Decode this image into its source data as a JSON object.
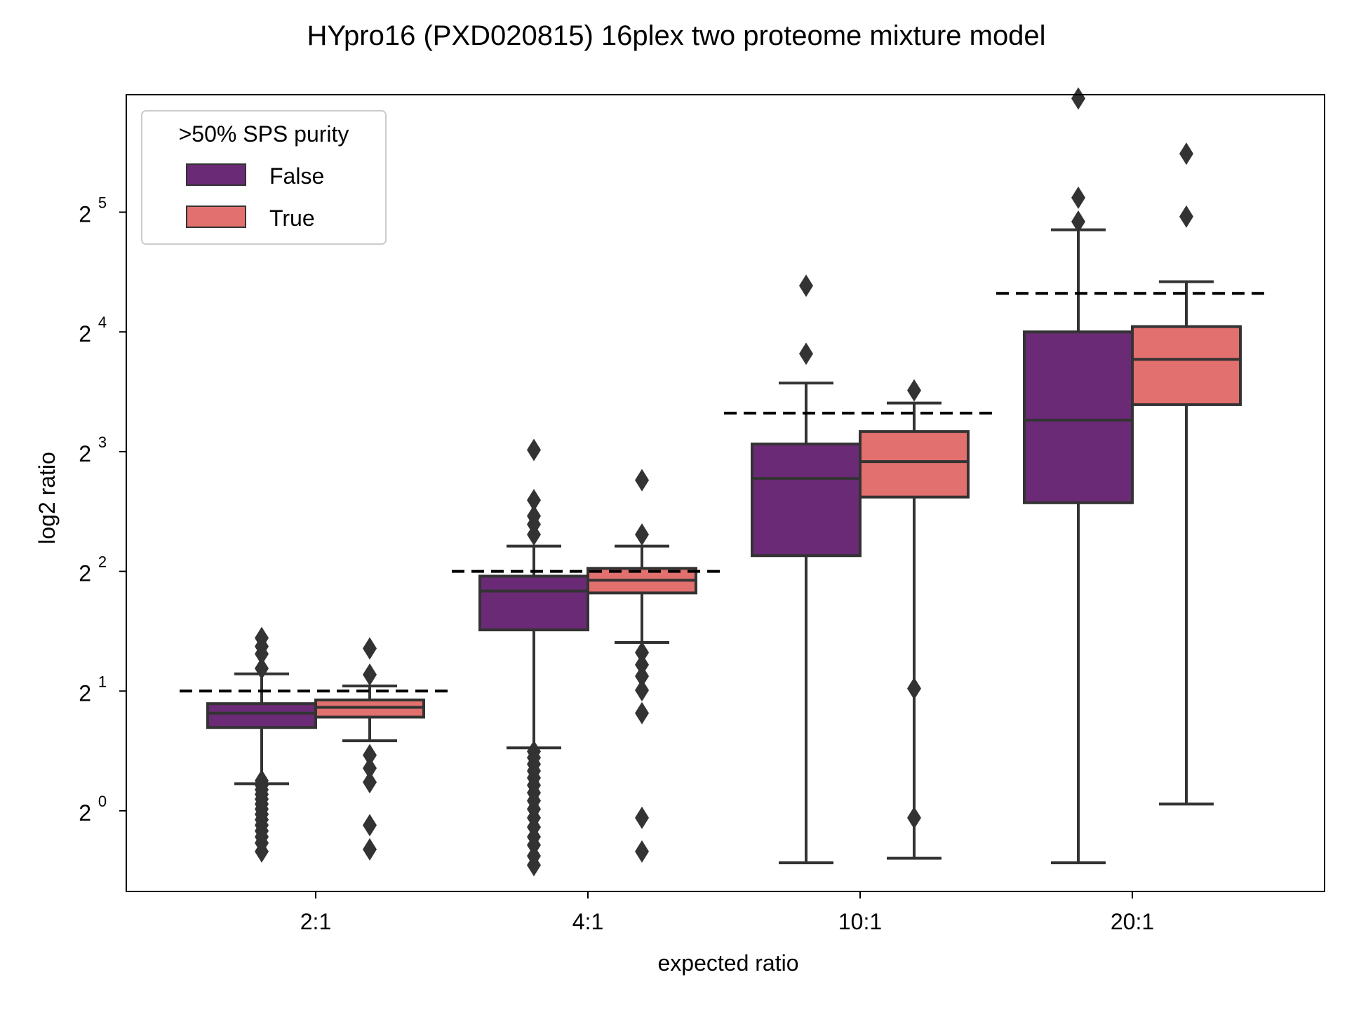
{
  "chart_data": {
    "type": "box",
    "title": "HYpro16 (PXD020815) 16plex two proteome mixture model",
    "xlabel": "expected ratio",
    "ylabel": "log2 ratio",
    "y_scale": "log2",
    "ylim": [
      0.69,
      108
    ],
    "y_ticks": [
      {
        "value": 1,
        "base": "2",
        "exponent": "0"
      },
      {
        "value": 2,
        "base": "2",
        "exponent": "1"
      },
      {
        "value": 4,
        "base": "2",
        "exponent": "2"
      },
      {
        "value": 8,
        "base": "2",
        "exponent": "3"
      },
      {
        "value": 16,
        "base": "2",
        "exponent": "4"
      },
      {
        "value": 32,
        "base": "2",
        "exponent": "5"
      }
    ],
    "categories": [
      "2:1",
      "4:1",
      "10:1",
      "20:1"
    ],
    "expected_values": [
      2,
      4,
      10,
      20
    ],
    "grid": false,
    "legend": {
      "title": ">50% SPS purity",
      "placement": "top-left"
    },
    "series": [
      {
        "name": "False",
        "color": "#6a2a75",
        "boxes": [
          {
            "category": "2:1",
            "whisker_low": 1.17,
            "q1": 1.62,
            "median": 1.76,
            "q3": 1.86,
            "whisker_high": 2.21,
            "outliers": [
              1.19,
              1.16,
              1.13,
              1.1,
              1.07,
              1.04,
              1.01,
              0.98,
              0.95,
              0.92,
              0.89,
              0.86,
              0.83,
              0.79,
              2.28,
              2.48,
              2.59,
              2.72
            ]
          },
          {
            "category": "4:1",
            "whisker_low": 1.44,
            "q1": 2.85,
            "median": 3.57,
            "q3": 3.89,
            "whisker_high": 4.63,
            "outliers": [
              1.41,
              1.36,
              1.31,
              1.26,
              1.21,
              1.16,
              1.11,
              1.06,
              1.01,
              0.96,
              0.91,
              0.86,
              0.82,
              0.77,
              0.73,
              4.95,
              5.25,
              5.51,
              6.04,
              8.08
            ]
          },
          {
            "category": "10:1",
            "whisker_low": 0.74,
            "q1": 4.38,
            "median": 6.85,
            "q3": 8.36,
            "whisker_high": 11.9,
            "outliers": [
              14.1,
              20.9
            ]
          },
          {
            "category": "20:1",
            "whisker_low": 0.74,
            "q1": 5.95,
            "median": 9.6,
            "q3": 16.0,
            "whisker_high": 28.9,
            "outliers": [
              30.3,
              34.8,
              61.8
            ]
          }
        ]
      },
      {
        "name": "True",
        "color": "#e2706e",
        "boxes": [
          {
            "category": "2:1",
            "whisker_low": 1.5,
            "q1": 1.72,
            "median": 1.82,
            "q3": 1.9,
            "whisker_high": 2.06,
            "outliers": [
              1.38,
              1.28,
              1.18,
              0.92,
              0.8,
              2.2,
              2.56
            ]
          },
          {
            "category": "4:1",
            "whisker_low": 2.65,
            "q1": 3.53,
            "median": 3.8,
            "q3": 4.07,
            "whisker_high": 4.63,
            "outliers": [
              2.5,
              2.33,
              2.18,
              2.01,
              1.76,
              0.96,
              0.79,
              4.95,
              6.78
            ]
          },
          {
            "category": "10:1",
            "whisker_low": 0.76,
            "q1": 6.15,
            "median": 7.55,
            "q3": 8.99,
            "whisker_high": 10.6,
            "outliers": [
              11.4,
              2.03,
              0.96
            ]
          },
          {
            "category": "20:1",
            "whisker_low": 1.04,
            "q1": 10.5,
            "median": 13.65,
            "q3": 16.5,
            "whisker_high": 21.4,
            "outliers": [
              31.2,
              44.9
            ]
          }
        ]
      }
    ]
  }
}
